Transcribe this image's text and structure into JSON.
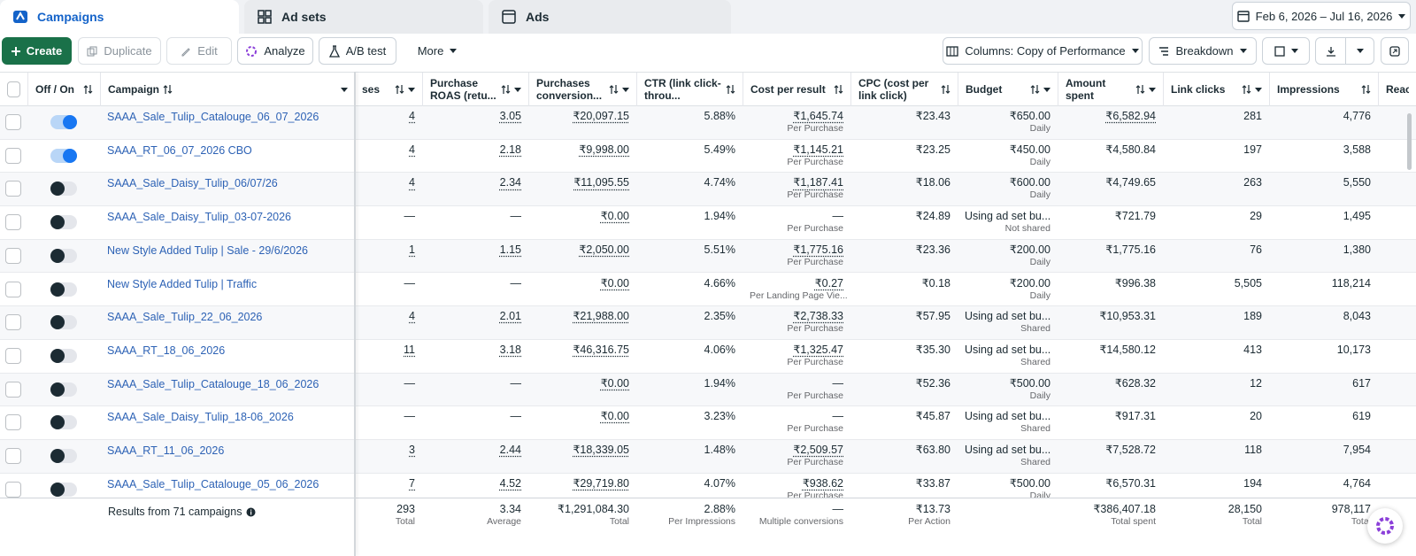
{
  "tabs": [
    "Campaigns",
    "Ad sets",
    "Ads"
  ],
  "date_range": "Feb 6, 2026 – Jul 16, 2026",
  "toolbar": {
    "create": "Create",
    "duplicate": "Duplicate",
    "edit": "Edit",
    "analyze": "Analyze",
    "ab_test": "A/B test",
    "more": "More",
    "columns": "Columns: Copy of Performance",
    "breakdown": "Breakdown"
  },
  "table": {
    "headers": [
      "Off / On",
      "Campaign",
      "ses",
      "Purchase ROAS (retu...",
      "Purchases conversion...",
      "CTR (link click-throu...",
      "Cost per result",
      "CPC (cost per link click)",
      "Budget",
      "Amount spent",
      "Link clicks",
      "Impressions",
      "Reach"
    ],
    "rows": [
      {
        "on": true,
        "campaign": "SAAA_Sale_Tulip_Catalouge_06_07_2026",
        "purchases": "4",
        "roas": "3.05",
        "conv_value": "₹20,097.15",
        "ctr": "5.88%",
        "cpr": "₹1,645.74",
        "cpr_sub": "Per Purchase",
        "cpc": "₹23.43",
        "budget": "₹650.00",
        "budget_sub": "Daily",
        "spent": "₹6,582.94",
        "clicks": "281",
        "impressions": "4,776"
      },
      {
        "on": true,
        "campaign": "SAAA_RT_06_07_2026 CBO",
        "purchases": "4",
        "roas": "2.18",
        "conv_value": "₹9,998.00",
        "ctr": "5.49%",
        "cpr": "₹1,145.21",
        "cpr_sub": "Per Purchase",
        "cpc": "₹23.25",
        "budget": "₹450.00",
        "budget_sub": "Daily",
        "spent": "₹4,580.84",
        "clicks": "197",
        "impressions": "3,588"
      },
      {
        "on": false,
        "campaign": "SAAA_Sale_Daisy_Tulip_06/07/26",
        "purchases": "4",
        "roas": "2.34",
        "conv_value": "₹11,095.55",
        "ctr": "4.74%",
        "cpr": "₹1,187.41",
        "cpr_sub": "Per Purchase",
        "cpc": "₹18.06",
        "budget": "₹600.00",
        "budget_sub": "Daily",
        "spent": "₹4,749.65",
        "clicks": "263",
        "impressions": "5,550"
      },
      {
        "on": false,
        "campaign": "SAAA_Sale_Daisy_Tulip_03-07-2026",
        "purchases": "—",
        "roas": "—",
        "conv_value": "₹0.00",
        "ctr": "1.94%",
        "cpr": "—",
        "cpr_sub": "Per Purchase",
        "cpc": "₹24.89",
        "budget": "Using ad set bu...",
        "budget_sub": "Not shared",
        "spent": "₹721.79",
        "clicks": "29",
        "impressions": "1,495"
      },
      {
        "on": false,
        "campaign": "New Style Added Tulip | Sale - 29/6/2026",
        "purchases": "1",
        "roas": "1.15",
        "conv_value": "₹2,050.00",
        "ctr": "5.51%",
        "cpr": "₹1,775.16",
        "cpr_sub": "Per Purchase",
        "cpc": "₹23.36",
        "budget": "₹200.00",
        "budget_sub": "Daily",
        "spent": "₹1,775.16",
        "clicks": "76",
        "impressions": "1,380"
      },
      {
        "on": false,
        "campaign": "New Style Added Tulip | Traffic",
        "purchases": "—",
        "roas": "—",
        "conv_value": "₹0.00",
        "ctr": "4.66%",
        "cpr": "₹0.27",
        "cpr_sub": "Per Landing Page Vie...",
        "cpc": "₹0.18",
        "budget": "₹200.00",
        "budget_sub": "Daily",
        "spent": "₹996.38",
        "clicks": "5,505",
        "impressions": "118,214"
      },
      {
        "on": false,
        "campaign": "SAAA_Sale_Tulip_22_06_2026",
        "purchases": "4",
        "roas": "2.01",
        "conv_value": "₹21,988.00",
        "ctr": "2.35%",
        "cpr": "₹2,738.33",
        "cpr_sub": "Per Purchase",
        "cpc": "₹57.95",
        "budget": "Using ad set bu...",
        "budget_sub": "Shared",
        "spent": "₹10,953.31",
        "clicks": "189",
        "impressions": "8,043"
      },
      {
        "on": false,
        "campaign": "SAAA_RT_18_06_2026",
        "purchases": "11",
        "roas": "3.18",
        "conv_value": "₹46,316.75",
        "ctr": "4.06%",
        "cpr": "₹1,325.47",
        "cpr_sub": "Per Purchase",
        "cpc": "₹35.30",
        "budget": "Using ad set bu...",
        "budget_sub": "Shared",
        "spent": "₹14,580.12",
        "clicks": "413",
        "impressions": "10,173"
      },
      {
        "on": false,
        "campaign": "SAAA_Sale_Tulip_Catalouge_18_06_2026",
        "purchases": "—",
        "roas": "—",
        "conv_value": "₹0.00",
        "ctr": "1.94%",
        "cpr": "—",
        "cpr_sub": "Per Purchase",
        "cpc": "₹52.36",
        "budget": "₹500.00",
        "budget_sub": "Daily",
        "spent": "₹628.32",
        "clicks": "12",
        "impressions": "617"
      },
      {
        "on": false,
        "campaign": "SAAA_Sale_Daisy_Tulip_18-06_2026",
        "purchases": "—",
        "roas": "—",
        "conv_value": "₹0.00",
        "ctr": "3.23%",
        "cpr": "—",
        "cpr_sub": "Per Purchase",
        "cpc": "₹45.87",
        "budget": "Using ad set bu...",
        "budget_sub": "Shared",
        "spent": "₹917.31",
        "clicks": "20",
        "impressions": "619"
      },
      {
        "on": false,
        "campaign": "SAAA_RT_11_06_2026",
        "purchases": "3",
        "roas": "2.44",
        "conv_value": "₹18,339.05",
        "ctr": "1.48%",
        "cpr": "₹2,509.57",
        "cpr_sub": "Per Purchase",
        "cpc": "₹63.80",
        "budget": "Using ad set bu...",
        "budget_sub": "Shared",
        "spent": "₹7,528.72",
        "clicks": "118",
        "impressions": "7,954"
      },
      {
        "on": false,
        "campaign": "SAAA_Sale_Tulip_Catalouge_05_06_2026",
        "purchases": "7",
        "roas": "4.52",
        "conv_value": "₹29,719.80",
        "ctr": "4.07%",
        "cpr": "₹938.62",
        "cpr_sub": "Per Purchase",
        "cpc": "₹33.87",
        "budget": "₹500.00",
        "budget_sub": "Daily",
        "spent": "₹6,570.31",
        "clicks": "194",
        "impressions": "4,764"
      }
    ],
    "footer": {
      "label": "Results from 71 campaigns",
      "cells": {
        "purchases": {
          "value": "293",
          "sub": "Total"
        },
        "roas": {
          "value": "3.34",
          "sub": "Average"
        },
        "conv_value": {
          "value": "₹1,291,084.30",
          "sub": "Total"
        },
        "ctr": {
          "value": "2.88%",
          "sub": "Per Impressions"
        },
        "cpr": {
          "value": "—",
          "sub": "Multiple conversions"
        },
        "cpc": {
          "value": "₹13.73",
          "sub": "Per Action"
        },
        "spent": {
          "value": "₹386,407.18",
          "sub": "Total spent"
        },
        "clicks": {
          "value": "28,150",
          "sub": "Total"
        },
        "impressions": {
          "value": "978,117",
          "sub": "Total"
        }
      }
    }
  }
}
